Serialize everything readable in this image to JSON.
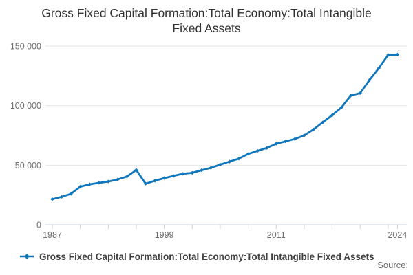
{
  "title": "Gross Fixed Capital Formation:Total Economy:Total Intangible Fixed Assets",
  "legend": {
    "label": "Gross Fixed Capital Formation:Total Economy:Total Intangible Fixed Assets"
  },
  "source_label": "Source:",
  "colors": {
    "line": "#1177bd",
    "grid": "#e6e6e6",
    "axis": "#c6d1dd",
    "tick_text": "#6f6f6f",
    "title_text": "#333333",
    "legend_text": "#414042"
  },
  "chart_data": {
    "type": "line",
    "title": "Gross Fixed Capital Formation:Total Economy:Total Intangible Fixed Assets",
    "xlabel": "",
    "ylabel": "",
    "x": [
      1987,
      1988,
      1989,
      1990,
      1991,
      1992,
      1993,
      1994,
      1995,
      1996,
      1997,
      1998,
      1999,
      2000,
      2001,
      2002,
      2003,
      2004,
      2005,
      2006,
      2007,
      2008,
      2009,
      2010,
      2011,
      2012,
      2013,
      2014,
      2015,
      2016,
      2017,
      2018,
      2019,
      2020,
      2021,
      2022,
      2023,
      2024
    ],
    "series": [
      {
        "name": "Gross Fixed Capital Formation:Total Economy:Total Intangible Fixed Assets",
        "values": [
          21500,
          23500,
          26000,
          32000,
          34000,
          35200,
          36300,
          38000,
          40500,
          46000,
          34500,
          37000,
          39200,
          41000,
          42800,
          43600,
          45800,
          47800,
          50500,
          53000,
          55500,
          59500,
          62000,
          64500,
          68000,
          70000,
          72000,
          75000,
          80000,
          86000,
          92000,
          98500,
          108500,
          110500,
          121500,
          131500,
          142500,
          142800
        ]
      }
    ],
    "xlim": [
      1987,
      2024
    ],
    "ylim": [
      0,
      150000
    ],
    "yticks": [
      0,
      50000,
      100000,
      150000
    ],
    "ytick_labels": [
      "0",
      "50 000",
      "100 000",
      "150 000"
    ],
    "xticks": [
      1987,
      1990,
      1993,
      1996,
      1999,
      2002,
      2005,
      2008,
      2011,
      2014,
      2017,
      2020,
      2023,
      2024
    ],
    "xtick_labels": {
      "1987": "1987",
      "1999": "1999",
      "2011": "2011",
      "2024": "2024"
    },
    "grid": "horizontal",
    "legend_position": "bottom-left",
    "marker": "diamond"
  }
}
